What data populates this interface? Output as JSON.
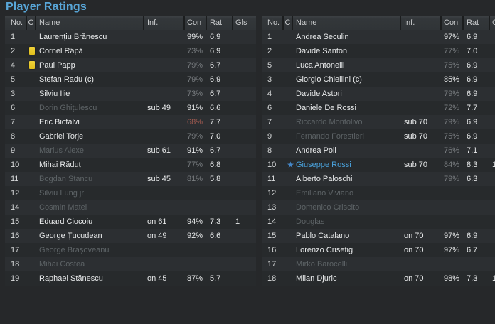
{
  "title": "Player Ratings",
  "columns": [
    "No.",
    "C",
    "Name",
    "Inf.",
    "Con",
    "Rat",
    "Gls"
  ],
  "icons": {
    "yellow_card": "yellow-card",
    "star": "★"
  },
  "colors": {
    "page_bg": "#26282a",
    "title": "#58a6d8",
    "header_bg": "#34383b",
    "header_text": "#c9cbcd",
    "stripe_even": "#2c2f32",
    "stripe_odd": "#272a2c",
    "name_normal": "#e8eaeb",
    "name_gray": "#5d6366",
    "name_highlight": "#4aa2dc",
    "number": "#d8dadb",
    "con_high": "#e8eaeb",
    "con_low": "#797d80",
    "con_red": "#a45b51",
    "card_yellow": "#e2c01c",
    "star_blue": "#4586c6"
  },
  "tables": [
    {
      "rows": [
        {
          "no": "1",
          "name": "Laurențiu Brănescu",
          "inf": "",
          "con": "99%",
          "conStyle": "hi",
          "rat": "6.9",
          "gls": ""
        },
        {
          "no": "2",
          "card": true,
          "name": "Cornel Râpă",
          "inf": "",
          "con": "73%",
          "conStyle": "lo",
          "rat": "6.9",
          "gls": ""
        },
        {
          "no": "4",
          "card": true,
          "name": "Paul Papp",
          "inf": "",
          "con": "79%",
          "conStyle": "lo",
          "rat": "6.7",
          "gls": ""
        },
        {
          "no": "5",
          "name": "Stefan Radu (c)",
          "inf": "",
          "con": "79%",
          "conStyle": "lo",
          "rat": "6.9",
          "gls": ""
        },
        {
          "no": "3",
          "name": "Silviu Ilie",
          "inf": "",
          "con": "73%",
          "conStyle": "lo",
          "rat": "6.7",
          "gls": ""
        },
        {
          "no": "6",
          "name": "Dorin Ghițulescu",
          "nameStyle": "gray",
          "inf": "sub 49",
          "con": "91%",
          "conStyle": "hi",
          "rat": "6.6",
          "gls": ""
        },
        {
          "no": "7",
          "name": "Eric Bicfalvi",
          "inf": "",
          "con": "68%",
          "conStyle": "red",
          "rat": "7.7",
          "gls": ""
        },
        {
          "no": "8",
          "name": "Gabriel Torje",
          "inf": "",
          "con": "79%",
          "conStyle": "lo",
          "rat": "7.0",
          "gls": ""
        },
        {
          "no": "9",
          "name": "Marius Alexe",
          "nameStyle": "gray",
          "inf": "sub 61",
          "con": "91%",
          "conStyle": "hi",
          "rat": "6.7",
          "gls": ""
        },
        {
          "no": "10",
          "name": "Mihai Răduț",
          "inf": "",
          "con": "77%",
          "conStyle": "lo",
          "rat": "6.8",
          "gls": ""
        },
        {
          "no": "11",
          "name": "Bogdan Stancu",
          "nameStyle": "gray",
          "inf": "sub 45",
          "con": "81%",
          "conStyle": "lo",
          "rat": "5.8",
          "gls": ""
        },
        {
          "no": "12",
          "name": "Silviu Lung jr",
          "nameStyle": "gray",
          "inf": "",
          "con": "",
          "rat": "",
          "gls": ""
        },
        {
          "no": "14",
          "name": "Cosmin Matei",
          "nameStyle": "gray",
          "inf": "",
          "con": "",
          "rat": "",
          "gls": ""
        },
        {
          "no": "15",
          "name": "Eduard Ciocoiu",
          "inf": "on 61",
          "con": "94%",
          "conStyle": "hi",
          "rat": "7.3",
          "gls": "1"
        },
        {
          "no": "16",
          "name": "George Țucudean",
          "inf": "on 49",
          "con": "92%",
          "conStyle": "hi",
          "rat": "6.6",
          "gls": ""
        },
        {
          "no": "17",
          "name": "George Brașoveanu",
          "nameStyle": "gray",
          "inf": "",
          "con": "",
          "rat": "",
          "gls": ""
        },
        {
          "no": "18",
          "name": "Mihai Costea",
          "nameStyle": "gray",
          "inf": "",
          "con": "",
          "rat": "",
          "gls": ""
        },
        {
          "no": "19",
          "name": "Raphael Stănescu",
          "inf": "on 45",
          "con": "87%",
          "conStyle": "hi",
          "rat": "5.7",
          "gls": ""
        }
      ]
    },
    {
      "rows": [
        {
          "no": "1",
          "name": "Andrea Seculin",
          "inf": "",
          "con": "97%",
          "conStyle": "hi",
          "rat": "6.9",
          "gls": ""
        },
        {
          "no": "2",
          "name": "Davide Santon",
          "inf": "",
          "con": "77%",
          "conStyle": "lo",
          "rat": "7.0",
          "gls": ""
        },
        {
          "no": "5",
          "name": "Luca Antonelli",
          "inf": "",
          "con": "75%",
          "conStyle": "lo",
          "rat": "6.9",
          "gls": ""
        },
        {
          "no": "3",
          "name": "Giorgio Chiellini (c)",
          "inf": "",
          "con": "85%",
          "conStyle": "hi",
          "rat": "6.9",
          "gls": ""
        },
        {
          "no": "4",
          "name": "Davide Astori",
          "inf": "",
          "con": "79%",
          "conStyle": "lo",
          "rat": "6.9",
          "gls": ""
        },
        {
          "no": "6",
          "name": "Daniele De Rossi",
          "inf": "",
          "con": "72%",
          "conStyle": "lo",
          "rat": "7.7",
          "gls": ""
        },
        {
          "no": "7",
          "name": "Riccardo Montolivo",
          "nameStyle": "gray",
          "inf": "sub 70",
          "con": "79%",
          "conStyle": "lo",
          "rat": "6.9",
          "gls": ""
        },
        {
          "no": "9",
          "name": "Fernando Forestieri",
          "nameStyle": "gray",
          "inf": "sub 70",
          "con": "75%",
          "conStyle": "lo",
          "rat": "6.9",
          "gls": ""
        },
        {
          "no": "8",
          "name": "Andrea Poli",
          "inf": "",
          "con": "76%",
          "conStyle": "lo",
          "rat": "7.1",
          "gls": ""
        },
        {
          "no": "10",
          "star": true,
          "name": "Giuseppe Rossi",
          "nameStyle": "highlight",
          "inf": "sub 70",
          "con": "84%",
          "conStyle": "lo",
          "rat": "8.3",
          "gls": "1"
        },
        {
          "no": "11",
          "name": "Alberto Paloschi",
          "inf": "",
          "con": "79%",
          "conStyle": "lo",
          "rat": "6.3",
          "gls": ""
        },
        {
          "no": "12",
          "name": "Emiliano Viviano",
          "nameStyle": "gray",
          "inf": "",
          "con": "",
          "rat": "",
          "gls": ""
        },
        {
          "no": "13",
          "name": "Domenico Criscito",
          "nameStyle": "gray",
          "inf": "",
          "con": "",
          "rat": "",
          "gls": ""
        },
        {
          "no": "14",
          "name": "Douglas",
          "nameStyle": "gray",
          "inf": "",
          "con": "",
          "rat": "",
          "gls": ""
        },
        {
          "no": "15",
          "name": "Pablo Catalano",
          "inf": "on 70",
          "con": "97%",
          "conStyle": "hi",
          "rat": "6.9",
          "gls": ""
        },
        {
          "no": "16",
          "name": "Lorenzo Crisetig",
          "inf": "on 70",
          "con": "97%",
          "conStyle": "hi",
          "rat": "6.7",
          "gls": ""
        },
        {
          "no": "17",
          "name": "Mirko Barocelli",
          "nameStyle": "gray",
          "inf": "",
          "con": "",
          "rat": "",
          "gls": ""
        },
        {
          "no": "18",
          "name": "Milan Djuric",
          "inf": "on 70",
          "con": "98%",
          "conStyle": "hi",
          "rat": "7.3",
          "gls": "1"
        }
      ]
    }
  ]
}
